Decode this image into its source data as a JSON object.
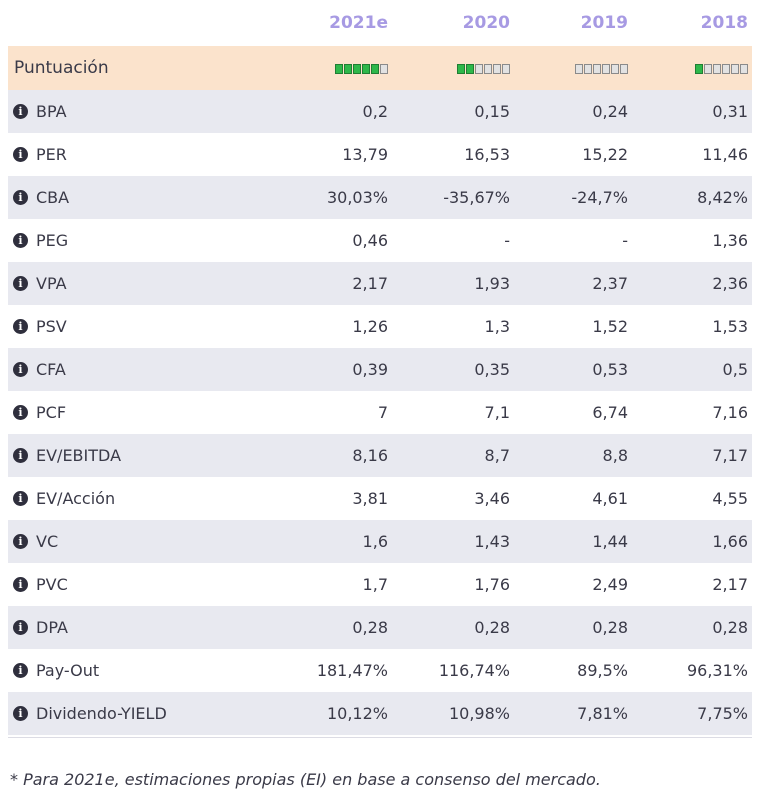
{
  "years": [
    "2021e",
    "2020",
    "2019",
    "2018"
  ],
  "score": {
    "label": "Puntuación",
    "values": [
      5,
      2,
      0,
      1
    ],
    "max": 6,
    "on_color": "#2eb84a",
    "off_color": "#e2e2e2"
  },
  "rows": [
    {
      "label": "BPA",
      "values": [
        "0,2",
        "0,15",
        "0,24",
        "0,31"
      ]
    },
    {
      "label": "PER",
      "values": [
        "13,79",
        "16,53",
        "15,22",
        "11,46"
      ]
    },
    {
      "label": "CBA",
      "values": [
        "30,03%",
        "-35,67%",
        "-24,7%",
        "8,42%"
      ]
    },
    {
      "label": "PEG",
      "values": [
        "0,46",
        "-",
        "-",
        "1,36"
      ]
    },
    {
      "label": "VPA",
      "values": [
        "2,17",
        "1,93",
        "2,37",
        "2,36"
      ]
    },
    {
      "label": "PSV",
      "values": [
        "1,26",
        "1,3",
        "1,52",
        "1,53"
      ]
    },
    {
      "label": "CFA",
      "values": [
        "0,39",
        "0,35",
        "0,53",
        "0,5"
      ]
    },
    {
      "label": "PCF",
      "values": [
        "7",
        "7,1",
        "6,74",
        "7,16"
      ]
    },
    {
      "label": "EV/EBITDA",
      "values": [
        "8,16",
        "8,7",
        "8,8",
        "7,17"
      ]
    },
    {
      "label": "EV/Acción",
      "values": [
        "3,81",
        "3,46",
        "4,61",
        "4,55"
      ]
    },
    {
      "label": "VC",
      "values": [
        "1,6",
        "1,43",
        "1,44",
        "1,66"
      ]
    },
    {
      "label": "PVC",
      "values": [
        "1,7",
        "1,76",
        "2,49",
        "2,17"
      ]
    },
    {
      "label": "DPA",
      "values": [
        "0,28",
        "0,28",
        "0,28",
        "0,28"
      ]
    },
    {
      "label": "Pay-Out",
      "values": [
        "181,47%",
        "116,74%",
        "89,5%",
        "96,31%"
      ]
    },
    {
      "label": "Dividendo-YIELD",
      "values": [
        "10,12%",
        "10,98%",
        "7,81%",
        "7,75%"
      ]
    }
  ],
  "footnote": "* Para 2021e, estimaciones propias (EI) en base a consenso del mercado.",
  "colors": {
    "header_year": "#a79ae3",
    "score_bg": "#fbe3cc",
    "alt_row_bg": "#e8e9f0"
  }
}
